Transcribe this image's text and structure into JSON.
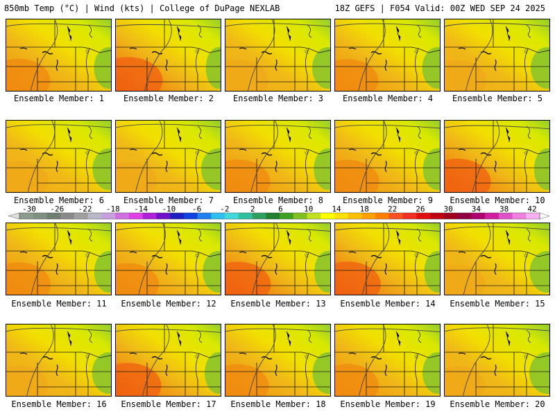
{
  "header": {
    "left": "850mb Temp (°C) | Wind (kts) | College of DuPage NEXLAB",
    "right": "18Z GEFS | F054 Valid: 00Z WED SEP 24 2025"
  },
  "members": [
    {
      "label": "Ensemble Member: 1",
      "warmth": 0.62
    },
    {
      "label": "Ensemble Member: 2",
      "warmth": 0.78
    },
    {
      "label": "Ensemble Member: 3",
      "warmth": 0.55
    },
    {
      "label": "Ensemble Member: 4",
      "warmth": 0.58
    },
    {
      "label": "Ensemble Member: 5",
      "warmth": 0.5
    },
    {
      "label": "Ensemble Member: 6",
      "warmth": 0.52
    },
    {
      "label": "Ensemble Member: 7",
      "warmth": 0.45
    },
    {
      "label": "Ensemble Member: 8",
      "warmth": 0.66
    },
    {
      "label": "Ensemble Member: 9",
      "warmth": 0.63
    },
    {
      "label": "Ensemble Member: 10",
      "warmth": 0.74
    },
    {
      "label": "Ensemble Member: 11",
      "warmth": 0.64
    },
    {
      "label": "Ensemble Member: 12",
      "warmth": 0.56
    },
    {
      "label": "Ensemble Member: 13",
      "warmth": 0.7
    },
    {
      "label": "Ensemble Member: 14",
      "warmth": 0.72
    },
    {
      "label": "Ensemble Member: 15",
      "warmth": 0.42
    },
    {
      "label": "Ensemble Member: 16",
      "warmth": 0.48
    },
    {
      "label": "Ensemble Member: 17",
      "warmth": 0.7
    },
    {
      "label": "Ensemble Member: 18",
      "warmth": 0.58
    },
    {
      "label": "Ensemble Member: 19",
      "warmth": 0.6
    },
    {
      "label": "Ensemble Member: 20",
      "warmth": 0.4
    }
  ],
  "colorbar": {
    "labels": [
      "-30",
      "-26",
      "-22",
      "-18",
      "-14",
      "-10",
      "-6",
      "-2",
      "2",
      "6",
      "10",
      "14",
      "18",
      "22",
      "26",
      "30",
      "34",
      "38",
      "42"
    ],
    "colors": [
      "#8c9b8c",
      "#7f8f80",
      "#6e7f72",
      "#8a8a8a",
      "#a0a0a0",
      "#b8b8c8",
      "#c8a0e0",
      "#d070e0",
      "#e040e8",
      "#b020d8",
      "#7010c8",
      "#2020c0",
      "#1040e0",
      "#2080f0",
      "#30c0f0",
      "#40d8d8",
      "#30c0a0",
      "#30a060",
      "#208030",
      "#40a020",
      "#80c020",
      "#c0e020",
      "#ffff00",
      "#ffe000",
      "#ffc000",
      "#ffa000",
      "#ff8000",
      "#f85020",
      "#f03020",
      "#e01010",
      "#c00010",
      "#a00020",
      "#900040",
      "#b00070",
      "#d020a0",
      "#e050c8",
      "#f080e0",
      "#f8b0f0"
    ]
  }
}
